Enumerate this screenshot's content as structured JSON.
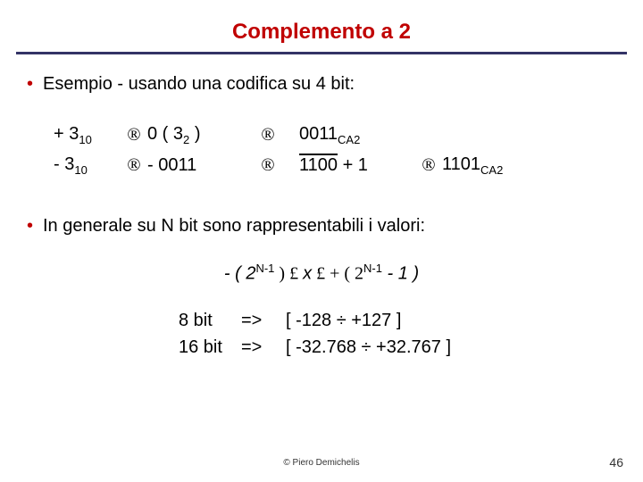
{
  "title": {
    "text": "Complemento a 2",
    "color": "#c00000",
    "fontsize": 24
  },
  "rule_color": "#333366",
  "bullet_color": "#c00000",
  "body_fontsize": 20,
  "bullet1": "Esempio - usando una codifica su 4  bit:",
  "ex": {
    "r1": {
      "lhs_pre": "+ 3",
      "lhs_sub": "10",
      "arrow": "®",
      "mid_pre": "0 ( 3",
      "mid_sub": "2",
      "mid_post": " )",
      "arrow2": "®",
      "rhs_pre": "0011",
      "rhs_sub": "CA2"
    },
    "r2": {
      "lhs_pre": "-  3",
      "lhs_sub": "10",
      "arrow": "®",
      "mid": "- 0011",
      "arrow2": "®",
      "rhs_over": "1100",
      "rhs_plus": " + 1",
      "arrow3": "®",
      "res_pre": "1101",
      "res_sub": "CA2"
    }
  },
  "bullet2": "In generale su N bit sono rappresentabili i valori:",
  "formula": {
    "pre": "- ( 2",
    "exp1": "N-1",
    "mid": " )  £  ",
    "var": "x",
    "mid2": "  £  + ( 2",
    "exp2": "N-1",
    "post": " - 1 )"
  },
  "ranges": {
    "r1": {
      "bits": "8 bit",
      "arrow": "=>",
      "range": "[ -128  ÷  +127 ]"
    },
    "r2": {
      "bits": "16 bit",
      "arrow": "=>",
      "range": "[ -32.768  ÷  +32.767 ]"
    }
  },
  "footer": {
    "copyright": "© Piero Demichelis",
    "page": "46"
  }
}
